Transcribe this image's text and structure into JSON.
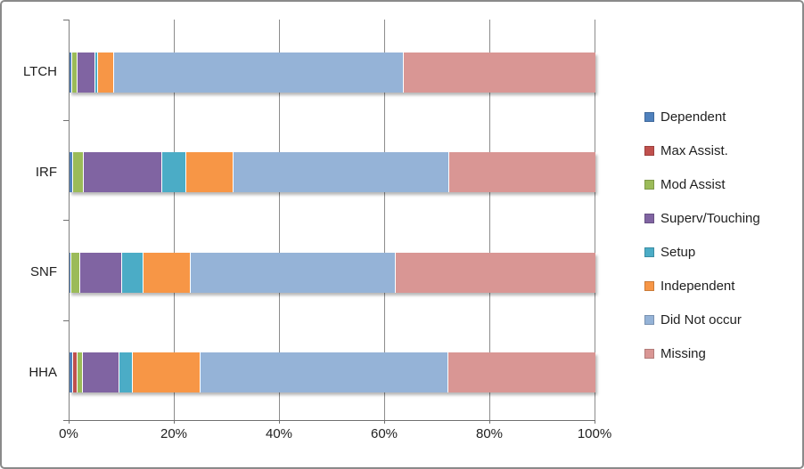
{
  "chart_data": {
    "type": "bar",
    "variant": "stacked-horizontal",
    "title": "",
    "categories": [
      "LTCH",
      "IRF",
      "SNF",
      "HHA"
    ],
    "series": [
      {
        "name": "Dependent",
        "color": "#4F81BD",
        "values": [
          0.5,
          0.7,
          0.4,
          0.7
        ]
      },
      {
        "name": "Max Assist.",
        "color": "#C0504D",
        "values": [
          0,
          0,
          0,
          0.8
        ]
      },
      {
        "name": "Mod Assist",
        "color": "#9BBB59",
        "values": [
          1,
          2,
          1.6,
          1
        ]
      },
      {
        "name": "Superv/Touching",
        "color": "#8064A2",
        "values": [
          3.5,
          15,
          8,
          7
        ]
      },
      {
        "name": "Setup",
        "color": "#4BACC6",
        "values": [
          0.5,
          4.5,
          4,
          2.5
        ]
      },
      {
        "name": "Independent",
        "color": "#F79646",
        "values": [
          3,
          9,
          9,
          13
        ]
      },
      {
        "name": "Did Not occur",
        "color": "#95B3D7",
        "values": [
          55,
          41,
          39,
          47
        ]
      },
      {
        "name": "Missing",
        "color": "#D99694",
        "values": [
          36.5,
          27.8,
          38,
          28
        ]
      }
    ],
    "x_ticks": [
      "0%",
      "20%",
      "40%",
      "60%",
      "80%",
      "100%"
    ],
    "x_tick_values": [
      0,
      20,
      40,
      60,
      80,
      100
    ],
    "xlim": [
      0,
      100
    ],
    "grid": "vertical-major",
    "legend_position": "right",
    "colors": {
      "axis": "#808080",
      "gridline": "#8c8c8c",
      "text": "#1f1f1f",
      "background": "#ffffff",
      "frame_border": "#8a8a8a"
    }
  }
}
